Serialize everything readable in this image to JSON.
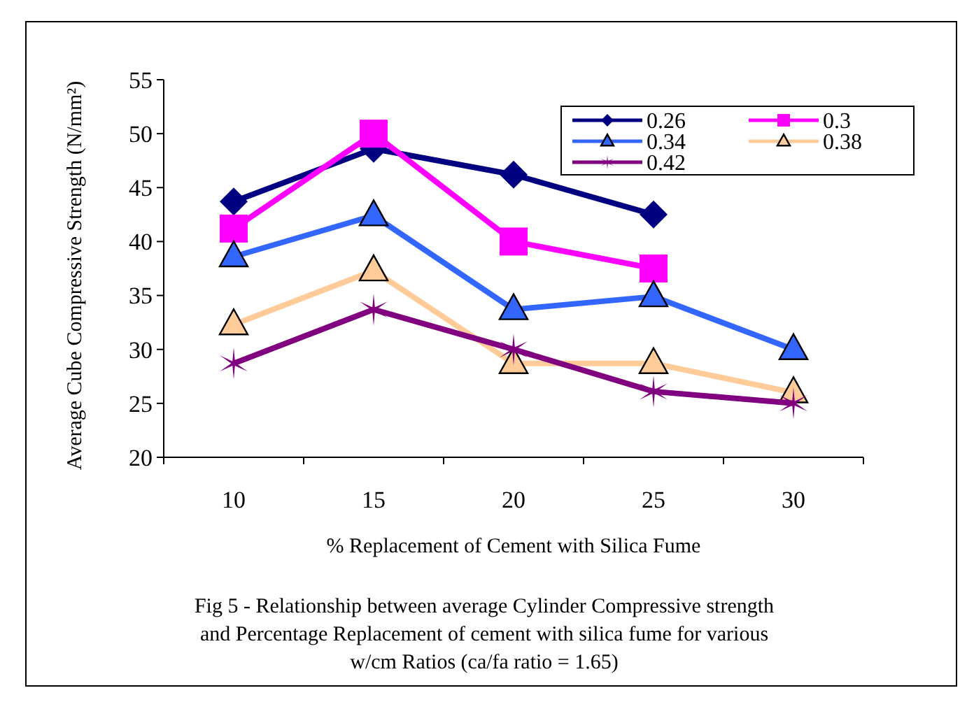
{
  "chart_data": {
    "type": "line",
    "title": "Fig 5 - Relationship between average Cylinder Compressive strength and Percentage Replacement of cement with silica fume for various w/cm Ratios (ca/fa ratio = 1.65)",
    "xlabel": "% Replacement of Cement with Silica Fume",
    "ylabel": "Average Cube Compressive Strength (N/mm²)",
    "categories": [
      "10",
      "15",
      "20",
      "25",
      "30"
    ],
    "ylim": [
      20,
      55
    ],
    "yticks": [
      20,
      25,
      30,
      35,
      40,
      45,
      50,
      55
    ],
    "grid": false,
    "legend": "top right",
    "series": [
      {
        "name": "0.26",
        "color": "#000080",
        "marker": "diamond",
        "values": [
          43.7,
          48.6,
          46.2,
          42.5,
          null
        ]
      },
      {
        "name": "0.3",
        "color": "#ff00ff",
        "marker": "square",
        "values": [
          41.2,
          50,
          40,
          37.5,
          null
        ]
      },
      {
        "name": "0.34",
        "color": "#3366ff",
        "marker": "triangle",
        "values": [
          38.6,
          42.4,
          33.7,
          34.9,
          30
        ]
      },
      {
        "name": "0.38",
        "color": "#ffcc99",
        "marker": "triangle",
        "values": [
          32.3,
          37.3,
          28.7,
          28.7,
          26
        ]
      },
      {
        "name": "0.42",
        "color": "#800080",
        "marker": "cross",
        "values": [
          28.7,
          33.7,
          30,
          26.1,
          25
        ]
      }
    ]
  }
}
